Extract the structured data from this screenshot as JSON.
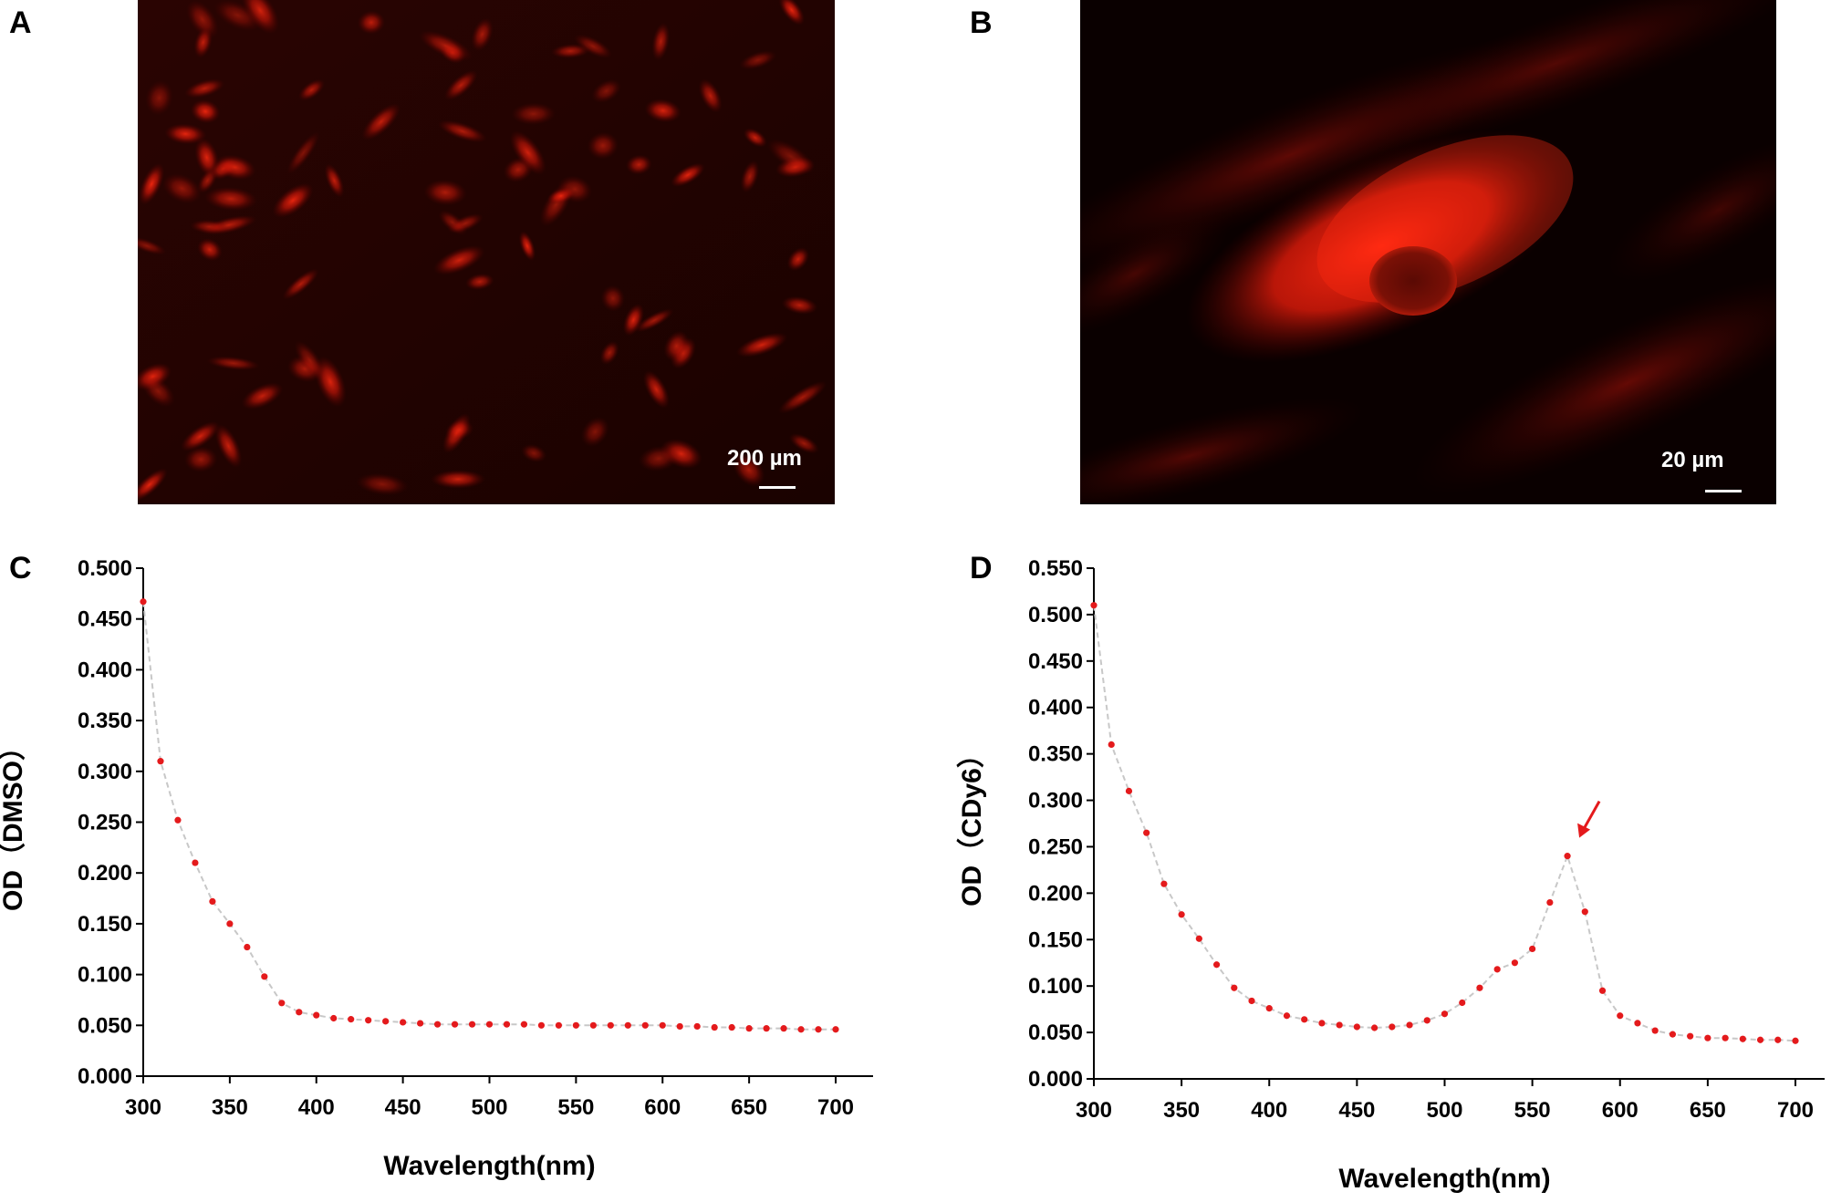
{
  "panels": {
    "a": {
      "letter": "A",
      "scale_label": "200 µm"
    },
    "b": {
      "letter": "B",
      "scale_label": "20 µm"
    },
    "c": {
      "letter": "C"
    },
    "d": {
      "letter": "D"
    }
  },
  "colors": {
    "marker": "#e41a1c",
    "trend": "#c8c8c8",
    "fluor": "#ff1a0a"
  },
  "chart_data": [
    {
      "type": "scatter",
      "xlabel": "Wavelength(nm)",
      "ylabel": "OD（DMSO）",
      "xlim": [
        300,
        700
      ],
      "ylim": [
        0.0,
        0.5
      ],
      "x_ticks": [
        "300",
        "350",
        "400",
        "450",
        "500",
        "550",
        "600",
        "650",
        "700"
      ],
      "y_ticks": [
        "0.000",
        "0.050",
        "0.100",
        "0.150",
        "0.200",
        "0.250",
        "0.300",
        "0.350",
        "0.400",
        "0.450",
        "0.500"
      ],
      "grid": false,
      "series": [
        {
          "x": [
            300,
            310,
            320,
            330,
            340,
            350,
            360,
            370,
            380,
            390,
            400,
            410,
            420,
            430,
            440,
            450,
            460,
            470,
            480,
            490,
            500,
            510,
            520,
            530,
            540,
            550,
            560,
            570,
            580,
            590,
            600,
            610,
            620,
            630,
            640,
            650,
            660,
            670,
            680,
            690,
            700
          ],
          "y": [
            0.467,
            0.31,
            0.252,
            0.21,
            0.172,
            0.15,
            0.127,
            0.098,
            0.072,
            0.063,
            0.06,
            0.057,
            0.056,
            0.055,
            0.054,
            0.053,
            0.052,
            0.051,
            0.051,
            0.051,
            0.051,
            0.051,
            0.051,
            0.05,
            0.05,
            0.05,
            0.05,
            0.05,
            0.05,
            0.05,
            0.05,
            0.049,
            0.049,
            0.048,
            0.048,
            0.047,
            0.047,
            0.047,
            0.046,
            0.046,
            0.046
          ]
        }
      ]
    },
    {
      "type": "scatter",
      "xlabel": "Wavelength(nm)",
      "ylabel": "OD（CDy6）",
      "xlim": [
        300,
        700
      ],
      "ylim": [
        0.0,
        0.55
      ],
      "x_ticks": [
        "300",
        "350",
        "400",
        "450",
        "500",
        "550",
        "600",
        "650",
        "700"
      ],
      "y_ticks": [
        "0.000",
        "0.050",
        "0.100",
        "0.150",
        "0.200",
        "0.250",
        "0.300",
        "0.350",
        "0.400",
        "0.450",
        "0.500",
        "0.550"
      ],
      "grid": false,
      "annotations": [
        {
          "type": "arrow",
          "target_x": 570,
          "target_y": 0.24,
          "color": "#e41a1c"
        }
      ],
      "series": [
        {
          "x": [
            300,
            310,
            320,
            330,
            340,
            350,
            360,
            370,
            380,
            390,
            400,
            410,
            420,
            430,
            440,
            450,
            460,
            470,
            480,
            490,
            500,
            510,
            520,
            530,
            540,
            550,
            560,
            570,
            580,
            590,
            600,
            610,
            620,
            630,
            640,
            650,
            660,
            670,
            680,
            690,
            700
          ],
          "y": [
            0.51,
            0.36,
            0.31,
            0.265,
            0.21,
            0.177,
            0.151,
            0.123,
            0.098,
            0.084,
            0.076,
            0.068,
            0.064,
            0.06,
            0.058,
            0.056,
            0.055,
            0.056,
            0.058,
            0.063,
            0.07,
            0.082,
            0.098,
            0.118,
            0.125,
            0.14,
            0.19,
            0.24,
            0.18,
            0.095,
            0.068,
            0.06,
            0.052,
            0.048,
            0.046,
            0.044,
            0.044,
            0.043,
            0.042,
            0.042,
            0.041
          ]
        }
      ]
    }
  ]
}
